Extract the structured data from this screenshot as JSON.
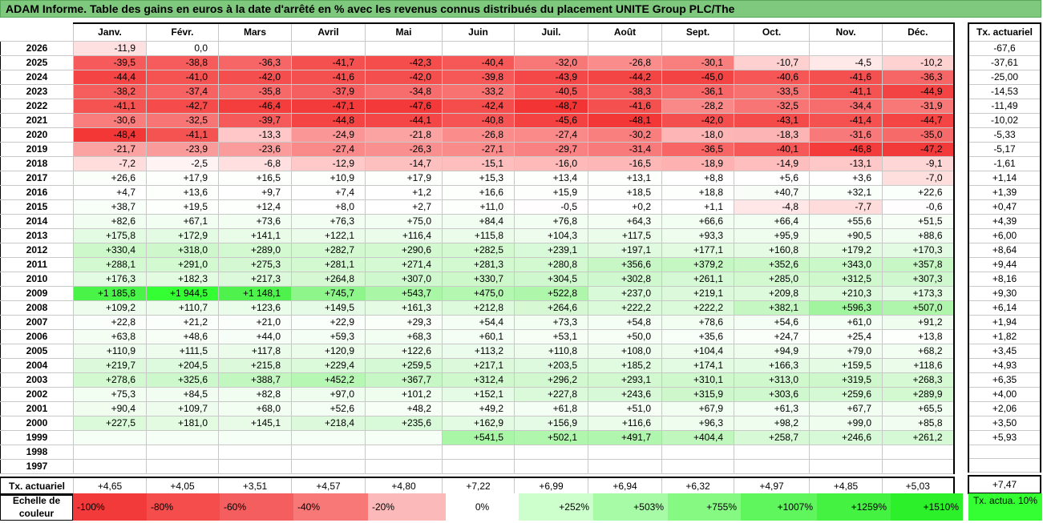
{
  "title": "ADAM Informe. Table des gains en euros à la date d'arrêté en % avec les revenus connus distribués du placement UNITE Group PLC/The",
  "months": [
    "Janv.",
    "Févr.",
    "Mars",
    "Avril",
    "Mai",
    "Juin",
    "Juil.",
    "Août",
    "Sept.",
    "Oct.",
    "Nov.",
    "Déc."
  ],
  "side_header": "Tx. actuariel",
  "rows": [
    {
      "year": "2026",
      "values": [
        "-11,9",
        "0,0",
        "",
        "",
        "",
        "",
        "",
        "",
        "",
        "",
        "",
        ""
      ],
      "colors": [
        "#ffe0e0",
        "#ffffff",
        "#ffffff",
        "#ffffff",
        "#ffffff",
        "#ffffff",
        "#ffffff",
        "#ffffff",
        "#ffffff",
        "#ffffff",
        "#ffffff",
        "#ffffff"
      ],
      "rate": "-67,6"
    },
    {
      "year": "2025",
      "values": [
        "-39,5",
        "-38,8",
        "-36,3",
        "-41,7",
        "-42,3",
        "-40,4",
        "-32,0",
        "-26,8",
        "-30,1",
        "-10,7",
        "-4,5",
        "-10,2"
      ],
      "colors": [
        "#f65a5a",
        "#f65c5c",
        "#f76666",
        "#f55050",
        "#f54c4c",
        "#f65858",
        "#f87878",
        "#fa8c8c",
        "#f97f7f",
        "#ffd0d0",
        "#ffe8e8",
        "#ffd2d2"
      ],
      "rate": "-37,61"
    },
    {
      "year": "2024",
      "values": [
        "-44,4",
        "-41,0",
        "-42,0",
        "-41,6",
        "-42,0",
        "-39,8",
        "-43,9",
        "-44,2",
        "-45,0",
        "-40,6",
        "-41,6",
        "-36,3"
      ],
      "colors": [
        "#f44444",
        "#f55252",
        "#f54e4e",
        "#f55050",
        "#f54e4e",
        "#f65858",
        "#f44747",
        "#f44545",
        "#f44343",
        "#f65656",
        "#f55050",
        "#f76666"
      ],
      "rate": "-25,00"
    },
    {
      "year": "2023",
      "values": [
        "-38,2",
        "-37,4",
        "-35,8",
        "-37,9",
        "-34,8",
        "-33,2",
        "-40,5",
        "-38,3",
        "-36,1",
        "-33,5",
        "-41,1",
        "-44,9"
      ],
      "colors": [
        "#f65e5e",
        "#f76262",
        "#f76868",
        "#f65f5f",
        "#f76c6c",
        "#f87272",
        "#f65656",
        "#f65e5e",
        "#f76767",
        "#f87171",
        "#f55252",
        "#f44343"
      ],
      "rate": "-14,53"
    },
    {
      "year": "2022",
      "values": [
        "-41,1",
        "-42,7",
        "-46,4",
        "-47,1",
        "-47,6",
        "-42,4",
        "-48,7",
        "-41,6",
        "-28,2",
        "-32,5",
        "-34,4",
        "-31,9"
      ],
      "colors": [
        "#f55252",
        "#f54b4b",
        "#f43e3e",
        "#f33b3b",
        "#f33939",
        "#f54c4c",
        "#f33434",
        "#f55050",
        "#f98888",
        "#f87575",
        "#f76d6d",
        "#f87777"
      ],
      "rate": "-11,49"
    },
    {
      "year": "2021",
      "values": [
        "-30,6",
        "-32,5",
        "-39,7",
        "-44,8",
        "-44,1",
        "-40,8",
        "-45,6",
        "-48,1",
        "-42,0",
        "-43,1",
        "-41,4",
        "-44,7"
      ],
      "colors": [
        "#f97d7d",
        "#f87575",
        "#f65959",
        "#f44444",
        "#f44646",
        "#f65454",
        "#f44141",
        "#f33737",
        "#f54e4e",
        "#f44a4a",
        "#f55151",
        "#f44444"
      ],
      "rate": "-10,02"
    },
    {
      "year": "2020",
      "values": [
        "-48,4",
        "-41,1",
        "-13,3",
        "-24,9",
        "-21,8",
        "-26,8",
        "-27,4",
        "-30,2",
        "-18,0",
        "-18,3",
        "-31,6",
        "-35,0"
      ],
      "colors": [
        "#f33636",
        "#f55252",
        "#ffc7c7",
        "#fa9696",
        "#fba2a2",
        "#fa8c8c",
        "#fa8a8a",
        "#f97e7e",
        "#fdb5b5",
        "#fdb4b4",
        "#f87979",
        "#f76a6a"
      ],
      "rate": "-5,33"
    },
    {
      "year": "2019",
      "values": [
        "-21,7",
        "-23,9",
        "-23,6",
        "-27,4",
        "-26,3",
        "-27,1",
        "-29,7",
        "-31,4",
        "-36,5",
        "-40,1",
        "-46,8",
        "-47,2"
      ],
      "colors": [
        "#fba2a2",
        "#fa9b9b",
        "#fa9c9c",
        "#fa8a8a",
        "#fa8f8f",
        "#fa8b8b",
        "#f98181",
        "#f97a7a",
        "#f76565",
        "#f65757",
        "#f43c3c",
        "#f33a3a"
      ],
      "rate": "-5,17"
    },
    {
      "year": "2018",
      "values": [
        "-7,2",
        "-2,5",
        "-6,8",
        "-12,9",
        "-14,7",
        "-15,1",
        "-16,0",
        "-16,5",
        "-18,9",
        "-14,9",
        "-13,1",
        "-9,1"
      ],
      "colors": [
        "#ffdddd",
        "#fff3f3",
        "#ffdfdf",
        "#ffc9c9",
        "#febfbf",
        "#febebe",
        "#feb9b9",
        "#feb7b7",
        "#fdb1b1",
        "#febebe",
        "#ffc8c8",
        "#ffd6d6"
      ],
      "rate": "-1,61"
    },
    {
      "year": "2017",
      "values": [
        "+26,6",
        "+17,9",
        "+16,5",
        "+10,9",
        "+17,9",
        "+15,3",
        "+13,4",
        "+13,1",
        "+8,8",
        "+5,6",
        "+3,6",
        "-7,0"
      ],
      "colors": [
        "#fafff9",
        "#fcfffc",
        "#fcfffc",
        "#fdfffd",
        "#fcfffc",
        "#fdfffd",
        "#fdfffd",
        "#fdfffd",
        "#fefffe",
        "#fefffe",
        "#ffffff",
        "#ffdede"
      ],
      "rate": "+1,14"
    },
    {
      "year": "2016",
      "values": [
        "+4,7",
        "+13,6",
        "+9,7",
        "+7,4",
        "+1,2",
        "+16,6",
        "+15,9",
        "+18,5",
        "+18,8",
        "+40,7",
        "+32,1",
        "+22,6"
      ],
      "colors": [
        "#fefffe",
        "#fdfffd",
        "#fefffe",
        "#fefffe",
        "#ffffff",
        "#fcfffc",
        "#fdfffd",
        "#fcfffc",
        "#fcfffc",
        "#f8fef7",
        "#f9fff9",
        "#fbfffb"
      ],
      "rate": "+1,39"
    },
    {
      "year": "2015",
      "values": [
        "+38,7",
        "+19,5",
        "+12,4",
        "+8,0",
        "+2,7",
        "+11,0",
        "-0,5",
        "+0,2",
        "+1,1",
        "-4,8",
        "-7,7",
        "-0,6"
      ],
      "colors": [
        "#f8fef8",
        "#fcfffc",
        "#fdfffd",
        "#fefffe",
        "#ffffff",
        "#fdfffd",
        "#fffdfd",
        "#ffffff",
        "#ffffff",
        "#ffe7e7",
        "#ffdcdc",
        "#fffdfd"
      ],
      "rate": "+0,47"
    },
    {
      "year": "2014",
      "values": [
        "+82,6",
        "+67,1",
        "+73,6",
        "+76,3",
        "+75,0",
        "+84,4",
        "+76,8",
        "+64,3",
        "+66,6",
        "+66,4",
        "+55,6",
        "+51,5"
      ],
      "colors": [
        "#f1fdf0",
        "#f3fef3",
        "#f2fef2",
        "#f2fef1",
        "#f2fef2",
        "#f0fdf0",
        "#f2fef1",
        "#f4fef3",
        "#f3fef3",
        "#f3fef3",
        "#f5fef5",
        "#f6fef5"
      ],
      "rate": "+4,39"
    },
    {
      "year": "2013",
      "values": [
        "+175,8",
        "+172,9",
        "+141,1",
        "+122,1",
        "+116,4",
        "+115,8",
        "+104,3",
        "+117,5",
        "+93,3",
        "+95,9",
        "+90,5",
        "+88,6"
      ],
      "colors": [
        "#e3fbe2",
        "#e3fbe3",
        "#e8fce7",
        "#ebfcea",
        "#ecfceb",
        "#ecfceb",
        "#edfced",
        "#ebfcea",
        "#effdef",
        "#effdef",
        "#f0fdef",
        "#f0fdf0"
      ],
      "rate": "+6,00"
    },
    {
      "year": "2012",
      "values": [
        "+330,4",
        "+318,0",
        "+289,0",
        "+282,7",
        "+290,6",
        "+282,5",
        "+239,1",
        "+197,1",
        "+177,1",
        "+160,8",
        "+179,2",
        "+170,3"
      ],
      "colors": [
        "#ccf8ca",
        "#cef8cc",
        "#d2f9d0",
        "#d3f9d1",
        "#d2f9d0",
        "#d3f9d1",
        "#d9fad8",
        "#dffade",
        "#e2fbe1",
        "#e5fbe4",
        "#e2fbe1",
        "#e3fbe3"
      ],
      "rate": "+8,64"
    },
    {
      "year": "2011",
      "values": [
        "+288,1",
        "+291,0",
        "+275,3",
        "+281,1",
        "+271,4",
        "+281,3",
        "+280,8",
        "+356,6",
        "+379,2",
        "+352,6",
        "+343,0",
        "+357,8"
      ],
      "colors": [
        "#d2f9d0",
        "#d2f9d0",
        "#d4f9d2",
        "#d3f9d1",
        "#d5f9d3",
        "#d3f9d1",
        "#d3f9d1",
        "#c8f7c6",
        "#c5f7c2",
        "#c9f7c6",
        "#caf8c8",
        "#c8f7c6"
      ],
      "rate": "+9,44"
    },
    {
      "year": "2010",
      "values": [
        "+176,3",
        "+182,3",
        "+217,3",
        "+264,8",
        "+307,0",
        "+330,7",
        "+304,5",
        "+302,8",
        "+261,1",
        "+285,0",
        "+312,5",
        "+307,3"
      ],
      "colors": [
        "#e3fbe2",
        "#e2fbe1",
        "#dcfadb",
        "#d6f9d4",
        "#d0f8ce",
        "#ccf8ca",
        "#d0f8ce",
        "#d0f8ce",
        "#d6f9d5",
        "#d3f9d1",
        "#cff8cd",
        "#d0f8ce"
      ],
      "rate": "+8,16"
    },
    {
      "year": "2009",
      "values": [
        "+1 185,8",
        "+1 944,5",
        "+1 148,1",
        "+745,7",
        "+543,7",
        "+475,0",
        "+522,8",
        "+237,0",
        "+219,1",
        "+209,8",
        "+210,3",
        "+173,3"
      ],
      "colors": [
        "#4af347",
        "#33ff33",
        "#4ff24c",
        "#8ef58b",
        "#aaf6a7",
        "#b3f7b0",
        "#adf6aa",
        "#d9fad8",
        "#dcfadb",
        "#ddfadc",
        "#ddfadc",
        "#e3fbe2"
      ],
      "rate": "+9,30"
    },
    {
      "year": "2008",
      "values": [
        "+109,2",
        "+110,7",
        "+123,6",
        "+149,5",
        "+161,3",
        "+212,8",
        "+264,6",
        "+222,2",
        "+222,2",
        "+382,1",
        "+596,3",
        "+507,0"
      ],
      "colors": [
        "#edfcec",
        "#edfcec",
        "#eafcea",
        "#e6fbe6",
        "#e5fbe4",
        "#ddfadc",
        "#d6f9d4",
        "#dbfada",
        "#dbfada",
        "#c4f7c1",
        "#a2f59f",
        "#aff6ac"
      ],
      "rate": "+6,14"
    },
    {
      "year": "2007",
      "values": [
        "+22,8",
        "+21,2",
        "+21,0",
        "+22,9",
        "+29,3",
        "+54,4",
        "+73,3",
        "+54,8",
        "+78,6",
        "+54,6",
        "+61,0",
        "+91,2"
      ],
      "colors": [
        "#fbfffb",
        "#fbfffb",
        "#fbfffb",
        "#fbfffb",
        "#fafff9",
        "#f5fef5",
        "#f2fef2",
        "#f5fef5",
        "#f2fef1",
        "#f5fef5",
        "#f4fef4",
        "#effdef"
      ],
      "rate": "+1,94"
    },
    {
      "year": "2006",
      "values": [
        "+63,8",
        "+48,6",
        "+44,0",
        "+59,3",
        "+68,3",
        "+60,1",
        "+53,1",
        "+50,0",
        "+35,6",
        "+24,7",
        "+25,4",
        "+13,8"
      ],
      "colors": [
        "#f4fef3",
        "#f6fef6",
        "#f7fef7",
        "#f4fef4",
        "#f3fef3",
        "#f4fef4",
        "#f6fef5",
        "#f6fef6",
        "#f8fef8",
        "#fafff9",
        "#fafff9",
        "#fdfffd"
      ],
      "rate": "+1,82"
    },
    {
      "year": "2005",
      "values": [
        "+110,9",
        "+111,5",
        "+117,8",
        "+120,9",
        "+122,6",
        "+113,2",
        "+110,8",
        "+108,0",
        "+104,4",
        "+94,9",
        "+79,0",
        "+68,2"
      ],
      "colors": [
        "#edfcec",
        "#edfcec",
        "#ebfcea",
        "#ebfcea",
        "#ebfcea",
        "#ecfcec",
        "#edfcec",
        "#edfced",
        "#edfced",
        "#effdef",
        "#f1fdf1",
        "#f3fef3"
      ],
      "rate": "+3,45"
    },
    {
      "year": "2004",
      "values": [
        "+219,7",
        "+204,5",
        "+215,8",
        "+229,4",
        "+259,5",
        "+217,1",
        "+203,5",
        "+185,2",
        "+174,1",
        "+166,3",
        "+159,5",
        "+118,6"
      ],
      "colors": [
        "#dcfadb",
        "#defade",
        "#dcfadb",
        "#dbfad9",
        "#d6f9d5",
        "#dcfadb",
        "#defade",
        "#e1fbe0",
        "#e2fbe2",
        "#e4fbe3",
        "#e5fbe4",
        "#ebfcea"
      ],
      "rate": "+4,93"
    },
    {
      "year": "2003",
      "values": [
        "+278,6",
        "+325,6",
        "+388,7",
        "+452,2",
        "+367,7",
        "+312,4",
        "+296,2",
        "+293,1",
        "+310,1",
        "+313,0",
        "+319,5",
        "+268,3"
      ],
      "colors": [
        "#d3f9d1",
        "#cdf8cb",
        "#c3f7c0",
        "#b6f7b3",
        "#c6f7c4",
        "#cff8cd",
        "#d1f8cf",
        "#d1f8cf",
        "#cff8cd",
        "#cff8cd",
        "#cef8cc",
        "#d5f9d3"
      ],
      "rate": "+6,35"
    },
    {
      "year": "2002",
      "values": [
        "+75,3",
        "+84,5",
        "+82,8",
        "+97,0",
        "+101,2",
        "+152,1",
        "+227,8",
        "+243,6",
        "+315,9",
        "+303,6",
        "+259,6",
        "+289,9"
      ],
      "colors": [
        "#f2fef1",
        "#f0fdf0",
        "#f1fdf0",
        "#eefdee",
        "#eefded",
        "#e6fbe5",
        "#dbfad9",
        "#d8f9d7",
        "#cef8cc",
        "#d0f8ce",
        "#d6f9d5",
        "#d2f9d0"
      ],
      "rate": "+4,00"
    },
    {
      "year": "2001",
      "values": [
        "+90,4",
        "+109,7",
        "+68,0",
        "+52,6",
        "+48,2",
        "+49,2",
        "+61,8",
        "+51,0",
        "+67,9",
        "+61,3",
        "+67,7",
        "+65,5"
      ],
      "colors": [
        "#f0fdef",
        "#edfcec",
        "#f3fef3",
        "#f5fef5",
        "#f6fef6",
        "#f6fef6",
        "#f4fef4",
        "#f6fef5",
        "#f3fef3",
        "#f4fef4",
        "#f3fef3",
        "#f3fef3"
      ],
      "rate": "+2,06"
    },
    {
      "year": "2000",
      "values": [
        "+227,5",
        "+181,0",
        "+145,1",
        "+218,4",
        "+235,6",
        "+162,9",
        "+156,9",
        "+116,6",
        "+96,3",
        "+98,2",
        "+99,0",
        "+85,8"
      ],
      "colors": [
        "#dbfad9",
        "#e2fbe1",
        "#e7fbe6",
        "#dcfadb",
        "#d9fad8",
        "#e4fbe3",
        "#e5fbe5",
        "#ecfceb",
        "#effdee",
        "#eefdee",
        "#eefdee",
        "#f0fdf0"
      ],
      "rate": "+3,50"
    },
    {
      "year": "1999",
      "values": [
        "",
        "",
        "",
        "",
        "",
        "+541,5",
        "+502,1",
        "+491,7",
        "+404,4",
        "+258,7",
        "+246,6",
        "+261,2"
      ],
      "colors": [
        "#f5fff5",
        "#f5fff5",
        "#f5fff5",
        "#f5fff5",
        "#f5fff5",
        "#aaf6a7",
        "#b0f6ad",
        "#b1f6ae",
        "#c0f7bd",
        "#d7f9d5",
        "#d8f9d7",
        "#d6f9d5"
      ],
      "rate": "+5,93"
    },
    {
      "year": "1998",
      "values": [
        "",
        "",
        "",
        "",
        "",
        "",
        "",
        "",
        "",
        "",
        "",
        ""
      ],
      "colors": [
        "#ffffff",
        "#ffffff",
        "#ffffff",
        "#ffffff",
        "#ffffff",
        "#ffffff",
        "#ffffff",
        "#ffffff",
        "#ffffff",
        "#ffffff",
        "#ffffff",
        "#ffffff"
      ],
      "rate": ""
    },
    {
      "year": "1997",
      "values": [
        "",
        "",
        "",
        "",
        "",
        "",
        "",
        "",
        "",
        "",
        "",
        ""
      ],
      "colors": [
        "#ffffff",
        "#ffffff",
        "#ffffff",
        "#ffffff",
        "#ffffff",
        "#ffffff",
        "#ffffff",
        "#ffffff",
        "#ffffff",
        "#ffffff",
        "#ffffff",
        "#ffffff"
      ],
      "rate": ""
    }
  ],
  "actuarial_row": {
    "label": "Tx. actuariel",
    "values": [
      "+4,65",
      "+4,05",
      "+3,51",
      "+4,57",
      "+4,80",
      "+7,22",
      "+6,99",
      "+6,94",
      "+6,32",
      "+4,97",
      "+4,85",
      "+5,03"
    ],
    "total": "+7,47"
  },
  "scale": {
    "label": "Echelle de couleur",
    "items": [
      {
        "label": "-100%",
        "color": "#f33a3a",
        "align": "left"
      },
      {
        "label": "-80%",
        "color": "#f54c4c",
        "align": "left"
      },
      {
        "label": "-60%",
        "color": "#f55e5e",
        "align": "left"
      },
      {
        "label": "-40%",
        "color": "#f87878",
        "align": "left"
      },
      {
        "label": "-20%",
        "color": "#fbb9b9",
        "align": "left"
      },
      {
        "label": "0%",
        "color": "#ffffff",
        "align": "center"
      },
      {
        "label": "+252%",
        "color": "#ccffcc",
        "align": "right"
      },
      {
        "label": "+503%",
        "color": "#a8fba6",
        "align": "right"
      },
      {
        "label": "+755%",
        "color": "#85f982",
        "align": "right"
      },
      {
        "label": "+1007%",
        "color": "#5ff55c",
        "align": "right"
      },
      {
        "label": "+1259%",
        "color": "#44f241",
        "align": "right"
      },
      {
        "label": "+1510%",
        "color": "#2cf029",
        "align": "right"
      }
    ],
    "rate_label": "Tx. actua. 10%",
    "rate_color": "#33ff33"
  }
}
